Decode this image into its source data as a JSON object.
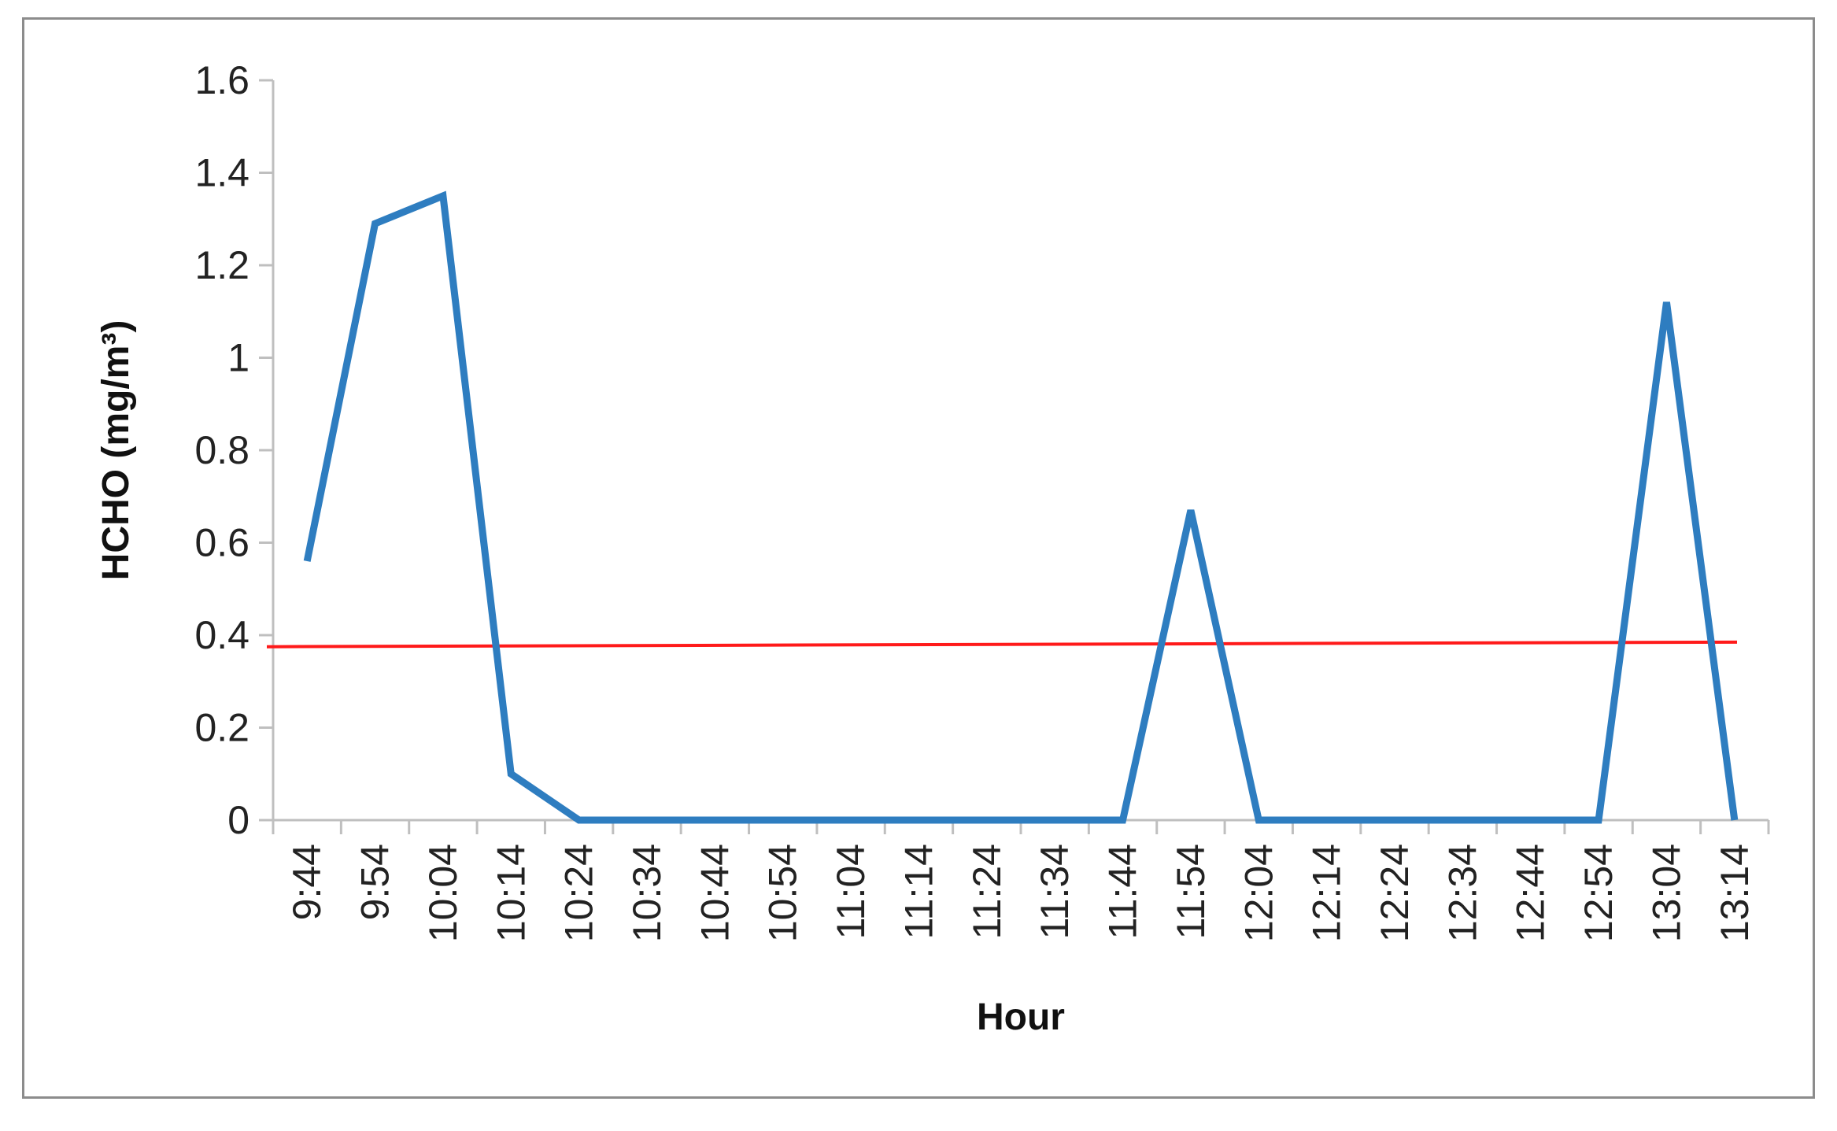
{
  "chart_data": {
    "type": "line",
    "title": "",
    "xlabel": "Hour",
    "ylabel": "HCHO (mg/m³)",
    "categories": [
      "9:44",
      "9:54",
      "10:04",
      "10:14",
      "10:24",
      "10:34",
      "10:44",
      "10:54",
      "11:04",
      "11:14",
      "11:24",
      "11:34",
      "11:44",
      "11:54",
      "12:04",
      "12:14",
      "12:24",
      "12:34",
      "12:44",
      "12:54",
      "13:04",
      "13:14"
    ],
    "ylim": [
      0,
      1.6
    ],
    "yticks": [
      "0",
      "0.2",
      "0.4",
      "0.6",
      "0.8",
      "1",
      "1.2",
      "1.4",
      "1.6"
    ],
    "grid": false,
    "legend": "none",
    "series": [
      {
        "values": [
          0.56,
          1.29,
          1.35,
          0.1,
          0,
          0,
          0,
          0,
          0,
          0,
          0,
          0,
          0,
          0.67,
          0,
          0,
          0,
          0,
          0,
          0,
          1.12,
          0
        ],
        "color": "#2e7dc0"
      }
    ],
    "reference_line": {
      "y_start": 0.375,
      "y_end": 0.385,
      "color": "#ff1a1a"
    }
  }
}
